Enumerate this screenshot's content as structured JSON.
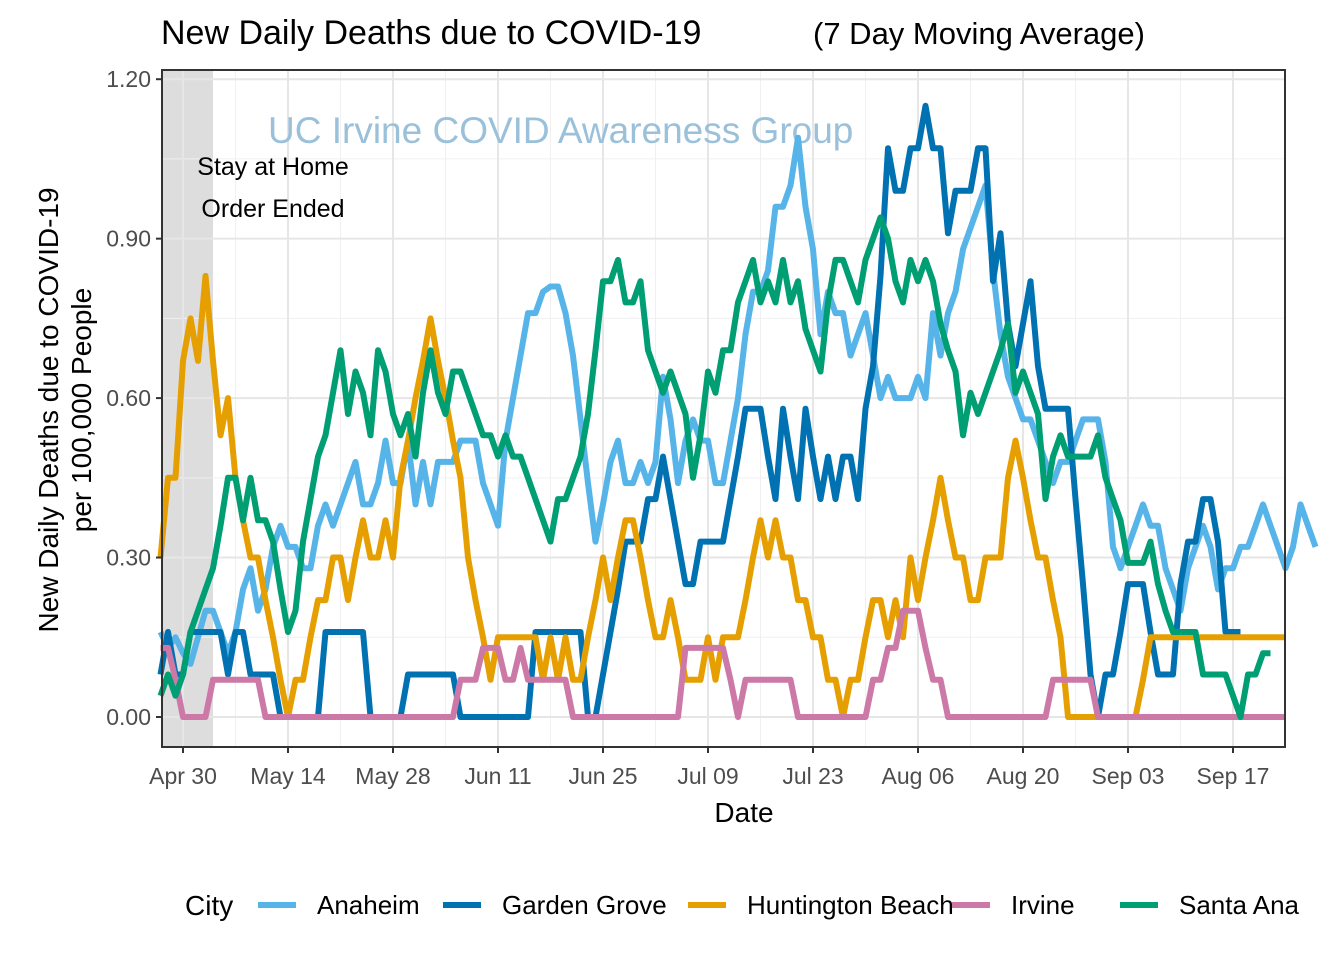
{
  "chart_data": {
    "type": "line",
    "title": "New Daily Deaths due to COVID-19",
    "subtitle": "(7 Day Moving Average)",
    "xlabel": "Date",
    "ylabel": [
      "New Daily Deaths due to COVID-19",
      "per 100,000 People"
    ],
    "x_tick_labels": [
      "Apr 30",
      "May 14",
      "May 28",
      "Jun 11",
      "Jun 25",
      "Jul 09",
      "Jul 23",
      "Aug 06",
      "Aug 20",
      "Sep 03",
      "Sep 17"
    ],
    "x_tick_days": [
      0,
      14,
      28,
      42,
      56,
      70,
      84,
      98,
      112,
      126,
      140
    ],
    "x_range_days": [
      -3,
      148
    ],
    "y_ticks": [
      0,
      0.3,
      0.6,
      0.9,
      1.2
    ],
    "y_tick_labels": [
      "0.00",
      "0.30",
      "0.60",
      "0.90",
      "1.20"
    ],
    "ylim": [
      -0.055,
      1.215
    ],
    "grid": true,
    "watermark": "UC Irvine COVID Awareness Group",
    "shaded_region": {
      "start_day": -3,
      "end_day": 4,
      "color": "#dddddd"
    },
    "annotation": [
      "Stay at Home",
      "Order Ended"
    ],
    "legend": {
      "title": "City",
      "position": "bottom"
    },
    "day_offset_of_first_value": -3,
    "series": [
      {
        "name": "Anaheim",
        "color": "#56b4e9",
        "values": [
          0.16,
          0.13,
          0.15,
          0.12,
          0.1,
          0.15,
          0.2,
          0.2,
          0.16,
          0.12,
          0.16,
          0.24,
          0.28,
          0.2,
          0.24,
          0.32,
          0.36,
          0.32,
          0.32,
          0.28,
          0.28,
          0.36,
          0.4,
          0.36,
          0.4,
          0.44,
          0.48,
          0.4,
          0.4,
          0.44,
          0.52,
          0.44,
          0.44,
          0.52,
          0.4,
          0.48,
          0.4,
          0.48,
          0.48,
          0.48,
          0.52,
          0.52,
          0.52,
          0.44,
          0.4,
          0.36,
          0.52,
          0.6,
          0.68,
          0.76,
          0.76,
          0.8,
          0.81,
          0.81,
          0.76,
          0.68,
          0.56,
          0.44,
          0.33,
          0.4,
          0.48,
          0.52,
          0.44,
          0.44,
          0.48,
          0.44,
          0.48,
          0.64,
          0.56,
          0.44,
          0.52,
          0.56,
          0.52,
          0.52,
          0.44,
          0.44,
          0.52,
          0.6,
          0.72,
          0.8,
          0.8,
          0.84,
          0.96,
          0.96,
          1.0,
          1.09,
          0.96,
          0.88,
          0.72,
          0.8,
          0.76,
          0.76,
          0.68,
          0.72,
          0.76,
          0.68,
          0.6,
          0.64,
          0.6,
          0.6,
          0.6,
          0.64,
          0.6,
          0.76,
          0.68,
          0.76,
          0.8,
          0.88,
          0.92,
          0.96,
          1.0,
          0.84,
          0.72,
          0.64,
          0.6,
          0.56,
          0.56,
          0.52,
          0.48,
          0.44,
          0.48,
          0.48,
          0.52,
          0.56,
          0.56,
          0.56,
          0.48,
          0.32,
          0.28,
          0.32,
          0.36,
          0.4,
          0.36,
          0.36,
          0.28,
          0.24,
          0.2,
          0.28,
          0.32,
          0.36,
          0.32,
          0.24,
          0.28,
          0.28,
          0.32,
          0.32,
          0.36,
          0.4,
          0.36,
          0.32,
          0.28,
          0.32,
          0.4,
          0.36,
          0.32
        ]
      },
      {
        "name": "Garden Grove",
        "color": "#0072b2",
        "values": [
          0.08,
          0.16,
          0.08,
          0.08,
          0.16,
          0.16,
          0.16,
          0.16,
          0.16,
          0.08,
          0.16,
          0.16,
          0.08,
          0.08,
          0.08,
          0.08,
          0.0,
          0.0,
          0.0,
          0.0,
          0.0,
          0.0,
          0.16,
          0.16,
          0.16,
          0.16,
          0.16,
          0.16,
          0.0,
          0.0,
          0.0,
          0.0,
          0.0,
          0.08,
          0.08,
          0.08,
          0.08,
          0.08,
          0.08,
          0.08,
          0.0,
          0.0,
          0.0,
          0.0,
          0.0,
          0.0,
          0.0,
          0.0,
          0.0,
          0.0,
          0.16,
          0.16,
          0.16,
          0.16,
          0.16,
          0.16,
          0.16,
          0.0,
          0.0,
          0.08,
          0.16,
          0.24,
          0.33,
          0.33,
          0.33,
          0.41,
          0.41,
          0.49,
          0.41,
          0.33,
          0.25,
          0.25,
          0.33,
          0.33,
          0.33,
          0.33,
          0.41,
          0.49,
          0.58,
          0.58,
          0.58,
          0.49,
          0.41,
          0.58,
          0.49,
          0.41,
          0.58,
          0.49,
          0.41,
          0.49,
          0.41,
          0.49,
          0.49,
          0.41,
          0.58,
          0.66,
          0.83,
          1.07,
          0.99,
          0.99,
          1.07,
          1.07,
          1.15,
          1.07,
          1.07,
          0.91,
          0.99,
          0.99,
          0.99,
          1.07,
          1.07,
          0.82,
          0.91,
          0.74,
          0.66,
          0.74,
          0.82,
          0.66,
          0.58,
          0.58,
          0.58,
          0.58,
          0.41,
          0.25,
          0.08,
          0.0,
          0.08,
          0.08,
          0.16,
          0.25,
          0.25,
          0.25,
          0.16,
          0.08,
          0.08,
          0.08,
          0.25,
          0.33,
          0.33,
          0.41,
          0.41,
          0.33,
          0.16,
          0.16,
          0.16
        ]
      },
      {
        "name": "Huntington Beach",
        "color": "#e69f00",
        "values": [
          0.3,
          0.45,
          0.45,
          0.67,
          0.75,
          0.67,
          0.83,
          0.67,
          0.53,
          0.6,
          0.45,
          0.37,
          0.3,
          0.3,
          0.22,
          0.15,
          0.07,
          0.0,
          0.07,
          0.07,
          0.15,
          0.22,
          0.22,
          0.3,
          0.3,
          0.22,
          0.3,
          0.37,
          0.3,
          0.3,
          0.37,
          0.3,
          0.45,
          0.52,
          0.6,
          0.67,
          0.75,
          0.67,
          0.6,
          0.52,
          0.45,
          0.3,
          0.22,
          0.15,
          0.07,
          0.15,
          0.15,
          0.15,
          0.15,
          0.15,
          0.15,
          0.07,
          0.15,
          0.07,
          0.15,
          0.07,
          0.07,
          0.15,
          0.22,
          0.3,
          0.22,
          0.3,
          0.37,
          0.37,
          0.3,
          0.22,
          0.15,
          0.15,
          0.22,
          0.15,
          0.07,
          0.07,
          0.07,
          0.15,
          0.07,
          0.15,
          0.15,
          0.15,
          0.22,
          0.3,
          0.37,
          0.3,
          0.37,
          0.3,
          0.3,
          0.22,
          0.22,
          0.15,
          0.15,
          0.07,
          0.07,
          0.0,
          0.07,
          0.07,
          0.15,
          0.22,
          0.22,
          0.15,
          0.22,
          0.15,
          0.3,
          0.22,
          0.3,
          0.37,
          0.45,
          0.37,
          0.3,
          0.3,
          0.22,
          0.22,
          0.3,
          0.3,
          0.3,
          0.45,
          0.52,
          0.45,
          0.37,
          0.3,
          0.3,
          0.22,
          0.15,
          0.0,
          0.0,
          0.0,
          0.0,
          0.0,
          0.0,
          0.0,
          0.0,
          0.0,
          0.0,
          0.07,
          0.15,
          0.15,
          0.15,
          0.15,
          0.15,
          0.15,
          0.15,
          0.15,
          0.15,
          0.15,
          0.15,
          0.15,
          0.15,
          0.15,
          0.15,
          0.15,
          0.15,
          0.15,
          0.15
        ]
      },
      {
        "name": "Irvine",
        "color": "#cc79a7",
        "values": [
          0.13,
          0.13,
          0.07,
          0.0,
          0.0,
          0.0,
          0.0,
          0.07,
          0.07,
          0.07,
          0.07,
          0.07,
          0.07,
          0.07,
          0.0,
          0.0,
          0.0,
          0.0,
          0.0,
          0.0,
          0.0,
          0.0,
          0.0,
          0.0,
          0.0,
          0.0,
          0.0,
          0.0,
          0.0,
          0.0,
          0.0,
          0.0,
          0.0,
          0.0,
          0.0,
          0.0,
          0.0,
          0.0,
          0.0,
          0.0,
          0.07,
          0.07,
          0.07,
          0.13,
          0.13,
          0.13,
          0.07,
          0.07,
          0.13,
          0.07,
          0.07,
          0.07,
          0.07,
          0.07,
          0.07,
          0.0,
          0.0,
          0.0,
          0.0,
          0.0,
          0.0,
          0.0,
          0.0,
          0.0,
          0.0,
          0.0,
          0.0,
          0.0,
          0.0,
          0.0,
          0.13,
          0.13,
          0.13,
          0.13,
          0.13,
          0.13,
          0.07,
          0.0,
          0.07,
          0.07,
          0.07,
          0.07,
          0.07,
          0.07,
          0.07,
          0.0,
          0.0,
          0.0,
          0.0,
          0.0,
          0.0,
          0.0,
          0.0,
          0.0,
          0.0,
          0.07,
          0.07,
          0.13,
          0.13,
          0.2,
          0.2,
          0.2,
          0.13,
          0.07,
          0.07,
          0.0,
          0.0,
          0.0,
          0.0,
          0.0,
          0.0,
          0.0,
          0.0,
          0.0,
          0.0,
          0.0,
          0.0,
          0.0,
          0.0,
          0.07,
          0.07,
          0.07,
          0.07,
          0.07,
          0.07,
          0.0,
          0.0,
          0.0,
          0.0,
          0.0,
          0.0,
          0.0,
          0.0,
          0.0,
          0.0,
          0.0,
          0.0,
          0.0,
          0.0,
          0.0,
          0.0,
          0.0,
          0.0,
          0.0,
          0.0,
          0.0,
          0.0,
          0.0,
          0.0,
          0.0,
          0.0
        ]
      },
      {
        "name": "Santa Ana",
        "color": "#009e73",
        "values": [
          0.04,
          0.08,
          0.04,
          0.08,
          0.16,
          0.2,
          0.24,
          0.28,
          0.36,
          0.45,
          0.45,
          0.37,
          0.45,
          0.37,
          0.37,
          0.33,
          0.24,
          0.16,
          0.2,
          0.33,
          0.41,
          0.49,
          0.53,
          0.61,
          0.69,
          0.57,
          0.65,
          0.61,
          0.53,
          0.69,
          0.65,
          0.57,
          0.53,
          0.57,
          0.49,
          0.61,
          0.69,
          0.61,
          0.57,
          0.65,
          0.65,
          0.61,
          0.57,
          0.53,
          0.53,
          0.49,
          0.53,
          0.49,
          0.49,
          0.45,
          0.41,
          0.37,
          0.33,
          0.41,
          0.41,
          0.45,
          0.49,
          0.57,
          0.69,
          0.82,
          0.82,
          0.86,
          0.78,
          0.78,
          0.82,
          0.69,
          0.65,
          0.61,
          0.65,
          0.61,
          0.57,
          0.45,
          0.53,
          0.65,
          0.61,
          0.69,
          0.69,
          0.78,
          0.82,
          0.86,
          0.78,
          0.82,
          0.78,
          0.86,
          0.78,
          0.82,
          0.73,
          0.69,
          0.65,
          0.78,
          0.86,
          0.86,
          0.82,
          0.78,
          0.86,
          0.9,
          0.94,
          0.9,
          0.82,
          0.78,
          0.86,
          0.82,
          0.86,
          0.82,
          0.74,
          0.69,
          0.65,
          0.53,
          0.61,
          0.57,
          0.61,
          0.65,
          0.69,
          0.74,
          0.61,
          0.65,
          0.61,
          0.57,
          0.41,
          0.49,
          0.53,
          0.49,
          0.49,
          0.49,
          0.49,
          0.53,
          0.45,
          0.41,
          0.37,
          0.29,
          0.29,
          0.29,
          0.33,
          0.25,
          0.2,
          0.16,
          0.16,
          0.16,
          0.16,
          0.08,
          0.08,
          0.08,
          0.08,
          0.04,
          0.0,
          0.08,
          0.08,
          0.12,
          0.12
        ]
      }
    ]
  }
}
